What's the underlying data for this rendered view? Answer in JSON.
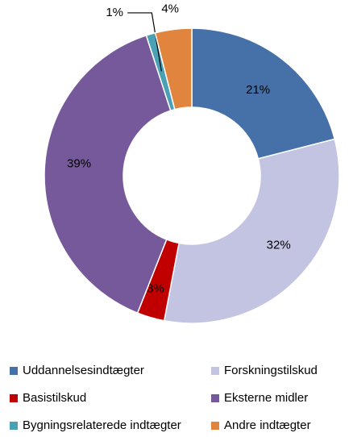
{
  "chart_data": {
    "type": "donut",
    "categories": [
      "Uddannelsesindtægter",
      "Forskningstilskud",
      "Basistilskud",
      "Eksterne midler",
      "Bygningsrelaterede indtægter",
      "Andre indtægter"
    ],
    "values": [
      21,
      32,
      3,
      39,
      1,
      4
    ],
    "value_labels": [
      "21%",
      "32%",
      "3%",
      "39%",
      "1%",
      "4%"
    ],
    "colors": [
      "#4571a8",
      "#c3c3e2",
      "#c00000",
      "#76599a",
      "#4aa0b5",
      "#e0843e"
    ],
    "legend": "bottom"
  }
}
